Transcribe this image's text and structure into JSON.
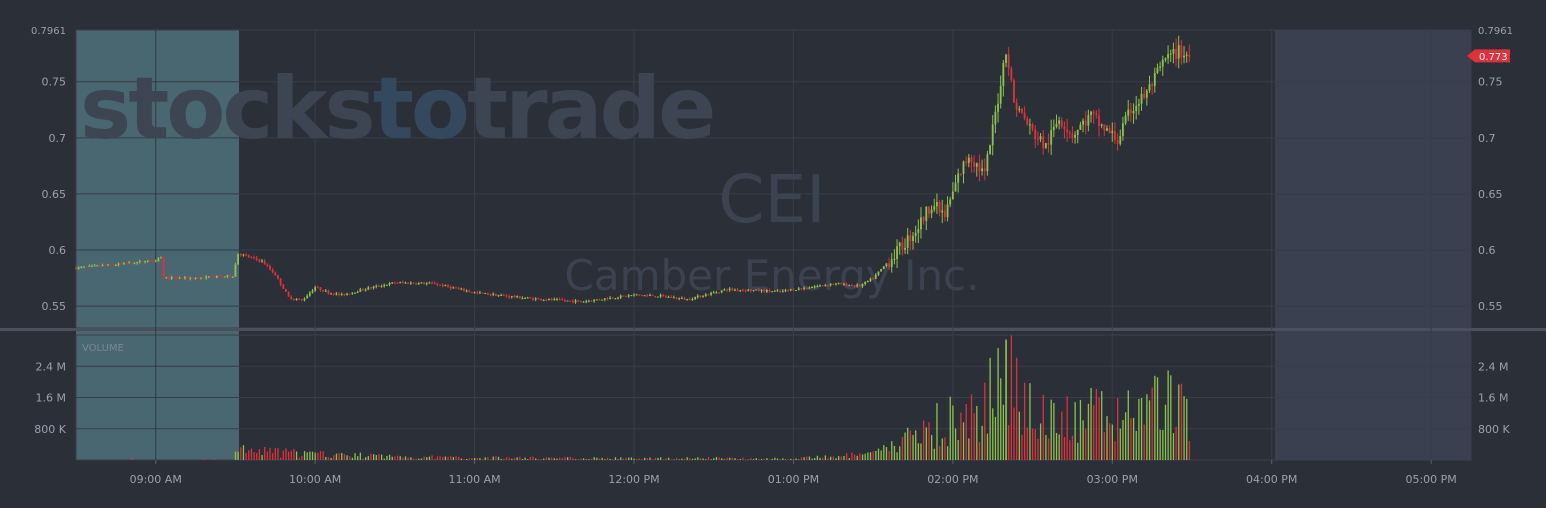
{
  "chart_data": {
    "type": "candlestick",
    "watermark": {
      "brand_part1": "stocks",
      "brand_part2": "to",
      "brand_part3": "trade",
      "ticker": "CEI",
      "company": "Camber Energy Inc."
    },
    "colors": {
      "background": "#2b2f38",
      "up": "#8bc34a",
      "down": "#e0303a",
      "premarket_shade": "#4b6a74",
      "afterhours_shade": "#3a4050",
      "last_price_tag": "#e0303a"
    },
    "price_axis": {
      "ylim": [
        0.5305,
        0.7961
      ],
      "ticks": [
        "0.55",
        "0.6",
        "0.65",
        "0.7",
        "0.75"
      ],
      "tick_values": [
        0.55,
        0.6,
        0.65,
        0.7,
        0.75
      ],
      "top_label": "0.7961",
      "last_price": "0.773"
    },
    "volume_panel": {
      "label": "VOLUME",
      "ylim": [
        0,
        3200000
      ],
      "ticks": [
        "800 K",
        "1.6 M",
        "2.4 M"
      ],
      "tick_values": [
        800000,
        1600000,
        2400000
      ]
    },
    "time_axis": {
      "start": "08:30",
      "end": "05:15 PM",
      "ticks": [
        "09:00 AM",
        "10:00 AM",
        "11:00 AM",
        "12:00 PM",
        "01:00 PM",
        "02:00 PM",
        "03:00 PM",
        "04:00 PM",
        "05:00 PM"
      ],
      "premarket_end": "09:30 AM",
      "regular_close": "04:00 PM"
    },
    "price_path": [
      [
        "08:30",
        0.584
      ],
      [
        "08:45",
        0.587
      ],
      [
        "09:00",
        0.591
      ],
      [
        "09:02",
        0.594
      ],
      [
        "09:03",
        0.575
      ],
      [
        "09:15",
        0.575
      ],
      [
        "09:29",
        0.577
      ],
      [
        "09:31",
        0.597
      ],
      [
        "09:40",
        0.59
      ],
      [
        "09:45",
        0.578
      ],
      [
        "09:50",
        0.558
      ],
      [
        "09:55",
        0.555
      ],
      [
        "10:00",
        0.567
      ],
      [
        "10:05",
        0.562
      ],
      [
        "10:10",
        0.56
      ],
      [
        "10:20",
        0.566
      ],
      [
        "10:30",
        0.571
      ],
      [
        "10:45",
        0.57
      ],
      [
        "11:00",
        0.562
      ],
      [
        "11:20",
        0.557
      ],
      [
        "11:40",
        0.554
      ],
      [
        "12:00",
        0.56
      ],
      [
        "12:10",
        0.559
      ],
      [
        "12:20",
        0.556
      ],
      [
        "12:35",
        0.565
      ],
      [
        "12:55",
        0.563
      ],
      [
        "13:15",
        0.57
      ],
      [
        "13:25",
        0.568
      ],
      [
        "13:30",
        0.575
      ],
      [
        "13:40",
        0.601
      ],
      [
        "13:47",
        0.621
      ],
      [
        "13:52",
        0.642
      ],
      [
        "13:57",
        0.63
      ],
      [
        "14:02",
        0.665
      ],
      [
        "14:06",
        0.685
      ],
      [
        "14:12",
        0.667
      ],
      [
        "14:17",
        0.735
      ],
      [
        "14:20",
        0.78
      ],
      [
        "14:23",
        0.732
      ],
      [
        "14:30",
        0.705
      ],
      [
        "14:35",
        0.692
      ],
      [
        "14:40",
        0.718
      ],
      [
        "14:45",
        0.703
      ],
      [
        "14:52",
        0.72
      ],
      [
        "14:57",
        0.708
      ],
      [
        "15:02",
        0.698
      ],
      [
        "15:07",
        0.725
      ],
      [
        "15:13",
        0.74
      ],
      [
        "15:20",
        0.77
      ],
      [
        "15:25",
        0.777
      ],
      [
        "15:29",
        0.773
      ]
    ],
    "volume_bars": [
      [
        "09:30",
        300000
      ],
      [
        "09:45",
        250000
      ],
      [
        "10:00",
        180000
      ],
      [
        "10:30",
        110000
      ],
      [
        "11:00",
        70000
      ],
      [
        "11:30",
        70000
      ],
      [
        "12:00",
        50000
      ],
      [
        "12:30",
        60000
      ],
      [
        "13:00",
        40000
      ],
      [
        "13:30",
        180000
      ],
      [
        "13:40",
        520000
      ],
      [
        "13:50",
        1050000
      ],
      [
        "14:00",
        1300000
      ],
      [
        "14:10",
        1250000
      ],
      [
        "14:20",
        3050000
      ],
      [
        "14:30",
        1700000
      ],
      [
        "14:40",
        1150000
      ],
      [
        "14:50",
        1400000
      ],
      [
        "15:00",
        1350000
      ],
      [
        "15:10",
        1700000
      ],
      [
        "15:20",
        1900000
      ],
      [
        "15:29",
        1500000
      ]
    ]
  }
}
